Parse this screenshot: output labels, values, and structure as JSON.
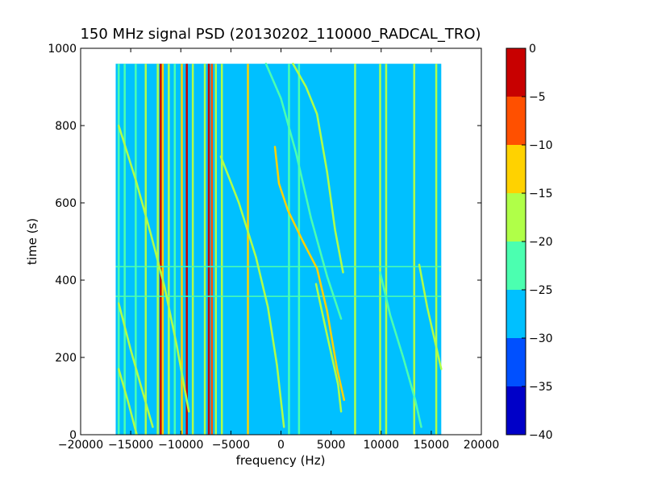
{
  "chart_data": {
    "type": "heatmap",
    "title": "150 MHz signal PSD (20130202_110000_RADCAL_TRO)",
    "xlabel": "frequency (Hz)",
    "ylabel": "time (s)",
    "xlim": [
      -20000,
      20000
    ],
    "ylim": [
      0,
      1000
    ],
    "xticks": [
      -20000,
      -15000,
      -10000,
      -5000,
      0,
      5000,
      10000,
      15000,
      20000
    ],
    "xtick_labels": [
      "−20000",
      "−15000",
      "−10000",
      "−5000",
      "0",
      "5000",
      "10000",
      "15000",
      "20000"
    ],
    "yticks": [
      0,
      200,
      400,
      600,
      800,
      1000
    ],
    "ytick_labels": [
      "0",
      "200",
      "400",
      "600",
      "800",
      "1000"
    ],
    "data_extent": {
      "x": [
        -16500,
        16000
      ],
      "y": [
        0,
        960
      ]
    },
    "background_level": -27.5,
    "vertical_lines": [
      {
        "x": -16200,
        "level": -22.5
      },
      {
        "x": -15600,
        "level": -22.5
      },
      {
        "x": -14500,
        "level": -22.5
      },
      {
        "x": -13500,
        "level": -17.5
      },
      {
        "x": -12300,
        "level": -17.5
      },
      {
        "x": -12000,
        "level": -2.5
      },
      {
        "x": -11800,
        "level": -12.5
      },
      {
        "x": -11200,
        "level": -17.5
      },
      {
        "x": -10600,
        "level": -22.5
      },
      {
        "x": -9900,
        "level": -12.5
      },
      {
        "x": -9400,
        "level": -2.5
      },
      {
        "x": -8800,
        "level": -17.5
      },
      {
        "x": -7600,
        "level": -17.5
      },
      {
        "x": -7200,
        "level": -2.5
      },
      {
        "x": -6900,
        "level": -7.5
      },
      {
        "x": -6500,
        "level": -17.5
      },
      {
        "x": -5900,
        "level": -17.5
      },
      {
        "x": -3300,
        "level": -12.5
      },
      {
        "x": 800,
        "level": -22.5
      },
      {
        "x": 1800,
        "level": -22.5
      },
      {
        "x": 7400,
        "level": -17.5
      },
      {
        "x": 9900,
        "level": -17.5
      },
      {
        "x": 10500,
        "level": -17.5
      },
      {
        "x": 13300,
        "level": -17.5
      },
      {
        "x": 15500,
        "level": -17.5
      }
    ],
    "horizontal_lines": [
      {
        "y": 435,
        "x_range": [
          -16500,
          16000
        ],
        "level": -22.5
      },
      {
        "y": 358,
        "x_range": [
          -16500,
          16000
        ],
        "level": -22.5
      }
    ],
    "tracks": [
      {
        "level": -12.5,
        "points": [
          [
            -600,
            745
          ],
          [
            -200,
            650
          ],
          [
            700,
            580
          ],
          [
            2200,
            500
          ],
          [
            3600,
            430
          ],
          [
            4600,
            320
          ],
          [
            5600,
            170
          ],
          [
            6300,
            90
          ]
        ]
      },
      {
        "level": -17.5,
        "points": [
          [
            1200,
            960
          ],
          [
            2500,
            900
          ],
          [
            3600,
            830
          ],
          [
            4600,
            680
          ],
          [
            5400,
            530
          ],
          [
            6200,
            420
          ]
        ]
      },
      {
        "level": -17.5,
        "points": [
          [
            -6000,
            720
          ],
          [
            -4200,
            600
          ],
          [
            -2500,
            460
          ],
          [
            -1300,
            330
          ],
          [
            -400,
            180
          ],
          [
            300,
            20
          ]
        ]
      },
      {
        "level": -17.5,
        "points": [
          [
            -16200,
            800
          ],
          [
            -14500,
            660
          ],
          [
            -13000,
            520
          ],
          [
            -11600,
            380
          ],
          [
            -10400,
            230
          ],
          [
            -9200,
            60
          ]
        ]
      },
      {
        "level": -17.5,
        "points": [
          [
            -16200,
            340
          ],
          [
            -15000,
            220
          ],
          [
            -13800,
            110
          ],
          [
            -12800,
            20
          ]
        ]
      },
      {
        "level": -17.5,
        "points": [
          [
            -16200,
            170
          ],
          [
            -15200,
            80
          ],
          [
            -14400,
            0
          ]
        ]
      },
      {
        "level": -17.5,
        "points": [
          [
            13800,
            440
          ],
          [
            14600,
            330
          ],
          [
            15300,
            250
          ],
          [
            16000,
            170
          ]
        ]
      },
      {
        "level": -22.5,
        "points": [
          [
            9900,
            420
          ],
          [
            10900,
            310
          ],
          [
            12200,
            200
          ],
          [
            13400,
            90
          ],
          [
            14000,
            20
          ]
        ]
      },
      {
        "level": -17.5,
        "points": [
          [
            3500,
            390
          ],
          [
            4500,
            270
          ],
          [
            5700,
            130
          ],
          [
            6000,
            60
          ]
        ]
      },
      {
        "level": -22.5,
        "points": [
          [
            -1500,
            960
          ],
          [
            0,
            870
          ],
          [
            1500,
            730
          ],
          [
            3000,
            560
          ],
          [
            4600,
            410
          ],
          [
            6000,
            300
          ]
        ]
      }
    ],
    "colorbar": {
      "range": [
        -40,
        0
      ],
      "ticks": [
        0,
        -5,
        -10,
        -15,
        -20,
        -25,
        -30,
        -35,
        -40
      ],
      "tick_labels": [
        "0",
        "−5",
        "−10",
        "−15",
        "−20",
        "−25",
        "−30",
        "−35",
        "−40"
      ],
      "levels": [
        {
          "from": -40,
          "to": -35,
          "color": "#0000c8"
        },
        {
          "from": -35,
          "to": -30,
          "color": "#0050ff"
        },
        {
          "from": -30,
          "to": -25,
          "color": "#00c0ff"
        },
        {
          "from": -25,
          "to": -20,
          "color": "#4bffb0"
        },
        {
          "from": -20,
          "to": -15,
          "color": "#b0ff48"
        },
        {
          "from": -15,
          "to": -10,
          "color": "#ffd200"
        },
        {
          "from": -10,
          "to": -5,
          "color": "#ff5000"
        },
        {
          "from": -5,
          "to": 0,
          "color": "#c80000"
        }
      ]
    }
  }
}
